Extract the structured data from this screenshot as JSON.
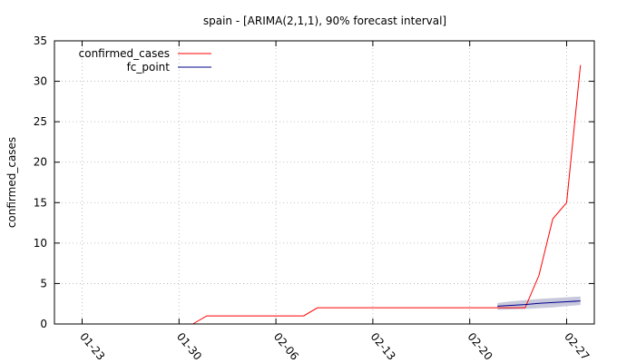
{
  "chart_data": {
    "type": "line",
    "title": "spain -  [ARIMA(2,1,1), 90% forecast interval]",
    "xlabel": "",
    "ylabel": "confirmed_cases",
    "ylim": [
      0,
      35
    ],
    "yticks": [
      0,
      5,
      10,
      15,
      20,
      25,
      30,
      35
    ],
    "xlim": [
      "2020-01-21",
      "2020-02-29"
    ],
    "xticks": [
      "2020-01-23",
      "2020-01-30",
      "2020-02-06",
      "2020-02-13",
      "2020-02-20",
      "2020-02-27"
    ],
    "xtick_labels": [
      "01-23",
      "01-30",
      "02-06",
      "02-13",
      "02-20",
      "02-27"
    ],
    "grid": true,
    "legend_position": "top-left",
    "series": [
      {
        "name": "confirmed_cases",
        "color": "#ff0000",
        "points": [
          [
            "2020-01-31",
            0
          ],
          [
            "2020-02-01",
            1
          ],
          [
            "2020-02-02",
            1
          ],
          [
            "2020-02-03",
            1
          ],
          [
            "2020-02-04",
            1
          ],
          [
            "2020-02-05",
            1
          ],
          [
            "2020-02-06",
            1
          ],
          [
            "2020-02-07",
            1
          ],
          [
            "2020-02-08",
            1
          ],
          [
            "2020-02-09",
            2
          ],
          [
            "2020-02-10",
            2
          ],
          [
            "2020-02-11",
            2
          ],
          [
            "2020-02-12",
            2
          ],
          [
            "2020-02-13",
            2
          ],
          [
            "2020-02-14",
            2
          ],
          [
            "2020-02-15",
            2
          ],
          [
            "2020-02-16",
            2
          ],
          [
            "2020-02-17",
            2
          ],
          [
            "2020-02-18",
            2
          ],
          [
            "2020-02-19",
            2
          ],
          [
            "2020-02-20",
            2
          ],
          [
            "2020-02-21",
            2
          ],
          [
            "2020-02-22",
            2
          ],
          [
            "2020-02-23",
            2
          ],
          [
            "2020-02-24",
            2
          ],
          [
            "2020-02-25",
            6
          ],
          [
            "2020-02-26",
            13
          ],
          [
            "2020-02-27",
            15
          ],
          [
            "2020-02-28",
            32
          ]
        ]
      },
      {
        "name": "fc_point",
        "color": "#00008b",
        "points": [
          [
            "2020-02-22",
            2.2
          ],
          [
            "2020-02-23",
            2.3
          ],
          [
            "2020-02-24",
            2.4
          ],
          [
            "2020-02-25",
            2.55
          ],
          [
            "2020-02-26",
            2.65
          ],
          [
            "2020-02-27",
            2.75
          ],
          [
            "2020-02-28",
            2.85
          ]
        ]
      }
    ],
    "forecast_interval": {
      "color": "#c8c8dc",
      "lower": [
        [
          "2020-02-22",
          1.75
        ],
        [
          "2020-02-23",
          1.8
        ],
        [
          "2020-02-24",
          1.85
        ],
        [
          "2020-02-25",
          1.95
        ],
        [
          "2020-02-26",
          2.05
        ],
        [
          "2020-02-27",
          2.2
        ],
        [
          "2020-02-28",
          2.35
        ]
      ],
      "upper": [
        [
          "2020-02-22",
          2.6
        ],
        [
          "2020-02-23",
          2.8
        ],
        [
          "2020-02-24",
          2.95
        ],
        [
          "2020-02-25",
          3.1
        ],
        [
          "2020-02-26",
          3.2
        ],
        [
          "2020-02-27",
          3.3
        ],
        [
          "2020-02-28",
          3.4
        ]
      ]
    }
  }
}
